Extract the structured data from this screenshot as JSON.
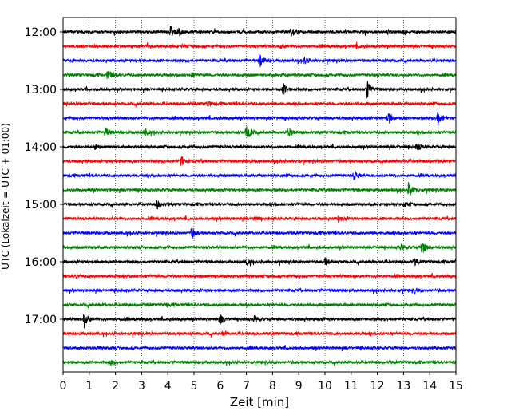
{
  "chart_data": {
    "type": "line",
    "title": "",
    "xlabel": "Zeit  [min]",
    "ylabel": "UTC (Lokalzeit = UTC + 01:00)",
    "xlim": [
      0,
      15
    ],
    "x_ticks": [
      0,
      1,
      2,
      3,
      4,
      5,
      6,
      7,
      8,
      9,
      10,
      11,
      12,
      13,
      14,
      15
    ],
    "y_tick_labels": [
      "12:00",
      "13:00",
      "14:00",
      "15:00",
      "16:00",
      "17:00"
    ],
    "rows_per_hour": 4,
    "row_minutes": 15,
    "grid": "vertical dotted lines at each minute",
    "legend": "none",
    "trace_color_cycle": [
      "#000000",
      "#ff0000",
      "#0000ff",
      "#008000"
    ],
    "traces": [
      {
        "start": "12:00",
        "events": [
          [
            4.1,
            7
          ],
          [
            4.4,
            5
          ],
          [
            8.7,
            6
          ],
          [
            12.4,
            3
          ]
        ]
      },
      {
        "start": "12:15",
        "events": [
          [
            8.3,
            3
          ],
          [
            11.2,
            2
          ]
        ]
      },
      {
        "start": "12:30",
        "events": [
          [
            7.5,
            9
          ],
          [
            9.2,
            5
          ]
        ]
      },
      {
        "start": "12:45",
        "events": [
          [
            1.7,
            6
          ],
          [
            4.9,
            2
          ]
        ]
      },
      {
        "start": "13:00",
        "events": [
          [
            8.4,
            7
          ],
          [
            11.6,
            12
          ]
        ]
      },
      {
        "start": "13:15",
        "events": [
          [
            5.5,
            4
          ]
        ]
      },
      {
        "start": "13:30",
        "events": [
          [
            12.4,
            9
          ],
          [
            14.3,
            10
          ]
        ]
      },
      {
        "start": "13:45",
        "events": [
          [
            1.6,
            6
          ],
          [
            3.1,
            5
          ],
          [
            7.0,
            11
          ],
          [
            8.6,
            7
          ]
        ]
      },
      {
        "start": "14:00",
        "events": [
          [
            1.2,
            3
          ],
          [
            13.5,
            5
          ]
        ]
      },
      {
        "start": "14:15",
        "events": [
          [
            4.5,
            7
          ]
        ]
      },
      {
        "start": "14:30",
        "events": [
          [
            11.1,
            5
          ]
        ]
      },
      {
        "start": "14:45",
        "events": [
          [
            13.2,
            10
          ]
        ]
      },
      {
        "start": "15:00",
        "events": [
          [
            3.6,
            6
          ],
          [
            13.0,
            3
          ]
        ]
      },
      {
        "start": "15:15",
        "events": [
          [
            7.3,
            3
          ],
          [
            10.5,
            4
          ]
        ]
      },
      {
        "start": "15:30",
        "events": [
          [
            4.9,
            7
          ]
        ]
      },
      {
        "start": "15:45",
        "events": [
          [
            13.7,
            9
          ],
          [
            12.9,
            3
          ]
        ]
      },
      {
        "start": "16:00",
        "events": [
          [
            7.0,
            4
          ],
          [
            10.0,
            5
          ],
          [
            13.4,
            4
          ],
          [
            15.0,
            3
          ]
        ]
      },
      {
        "start": "16:15",
        "events": [
          [
            0.5,
            2
          ]
        ]
      },
      {
        "start": "16:30",
        "events": [
          [
            13.4,
            3
          ]
        ]
      },
      {
        "start": "16:45",
        "events": [
          [
            3.9,
            2
          ]
        ]
      },
      {
        "start": "17:00",
        "events": [
          [
            0.8,
            11
          ],
          [
            6.0,
            6
          ],
          [
            7.3,
            4
          ]
        ]
      },
      {
        "start": "17:15",
        "events": [
          [
            6.1,
            2
          ]
        ]
      },
      {
        "start": "17:30",
        "events": [
          [
            1.3,
            2
          ]
        ]
      },
      {
        "start": "17:45",
        "events": [
          [
            1.8,
            3
          ]
        ]
      }
    ]
  }
}
